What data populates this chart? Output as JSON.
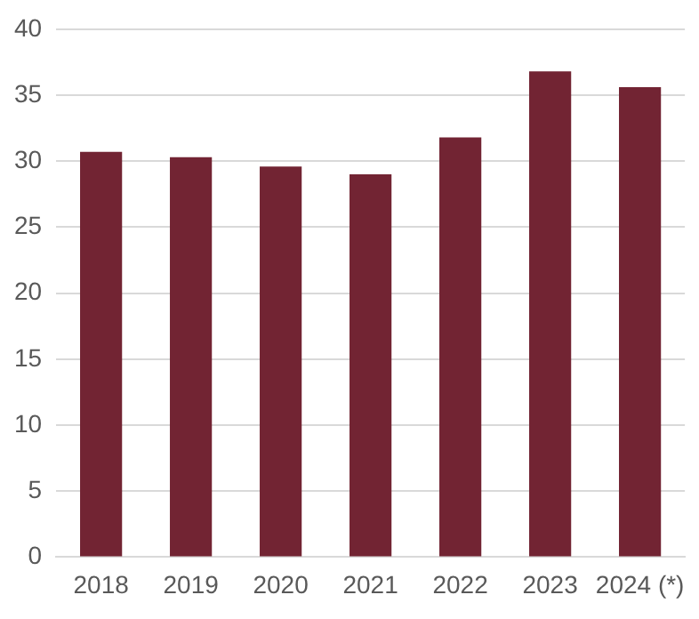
{
  "chart_data": {
    "type": "bar",
    "categories": [
      "2018",
      "2019",
      "2020",
      "2021",
      "2022",
      "2023",
      "2024 (*)"
    ],
    "values": [
      30.7,
      30.3,
      29.6,
      29.0,
      31.8,
      36.8,
      35.6
    ],
    "color": "#722433",
    "ylim": [
      0,
      40
    ],
    "yticks": [
      0,
      5,
      10,
      15,
      20,
      25,
      30,
      35,
      40
    ],
    "grid": "y"
  }
}
